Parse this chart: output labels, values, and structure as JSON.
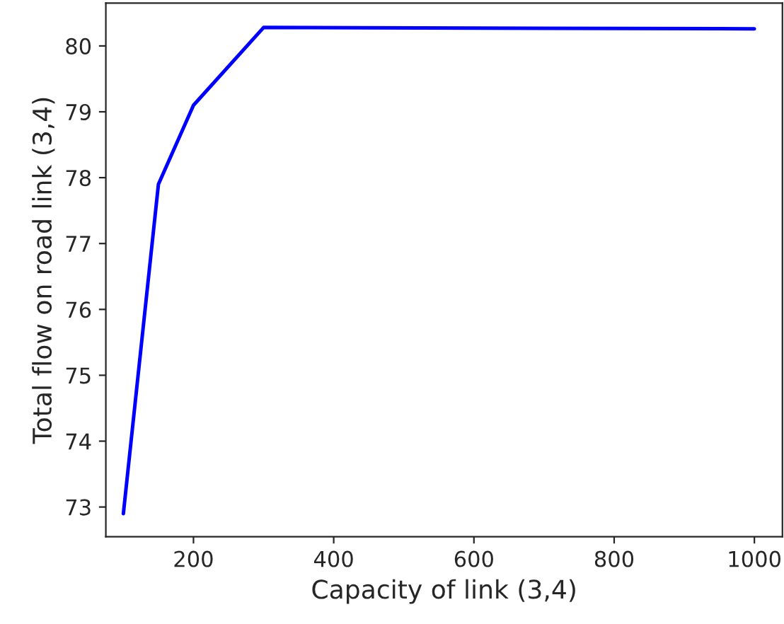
{
  "chart_data": {
    "type": "line",
    "xlabel": "Capacity of link (3,4)",
    "ylabel": "Total flow on road link (3,4)",
    "x": [
      100,
      150,
      200,
      300,
      1000
    ],
    "series": [
      {
        "color": "#0000ff",
        "values": [
          72.9,
          77.9,
          79.1,
          80.28,
          80.26
        ]
      }
    ],
    "xlim": [
      75,
      1040
    ],
    "ylim": [
      72.55,
      80.65
    ],
    "xticks": [
      200,
      400,
      600,
      800,
      1000
    ],
    "yticks": [
      73,
      74,
      75,
      76,
      77,
      78,
      79,
      80
    ],
    "grid": false,
    "line_style": "solid",
    "marker": "none"
  }
}
